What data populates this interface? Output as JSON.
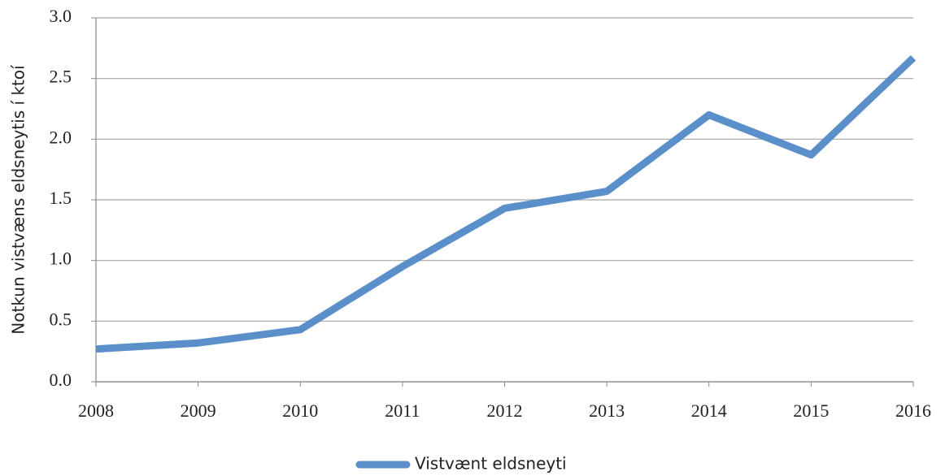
{
  "chart_data": {
    "type": "line",
    "ylabel": "Notkun vistvæns eldsneytis í ktoí",
    "x": [
      2008,
      2009,
      2010,
      2011,
      2012,
      2013,
      2014,
      2015,
      2016
    ],
    "series": [
      {
        "name": "Vistvænt eldsneyti",
        "color": "#5b8fc9",
        "values": [
          0.27,
          0.32,
          0.43,
          0.95,
          1.43,
          1.57,
          2.2,
          1.87,
          2.67
        ]
      }
    ],
    "xlim": [
      2008,
      2016
    ],
    "xticks": [
      2008,
      2009,
      2010,
      2011,
      2012,
      2013,
      2014,
      2015,
      2016
    ],
    "ylim": [
      0,
      3
    ],
    "yticks": [
      {
        "value": 0,
        "label": "0.0"
      },
      0.5,
      {
        "value": 1,
        "label": "1.0"
      },
      1.5,
      {
        "value": 2,
        "label": "2.0"
      },
      2.5,
      {
        "value": 3,
        "label": "3.0"
      }
    ],
    "grid": true,
    "legend": "bottom"
  }
}
